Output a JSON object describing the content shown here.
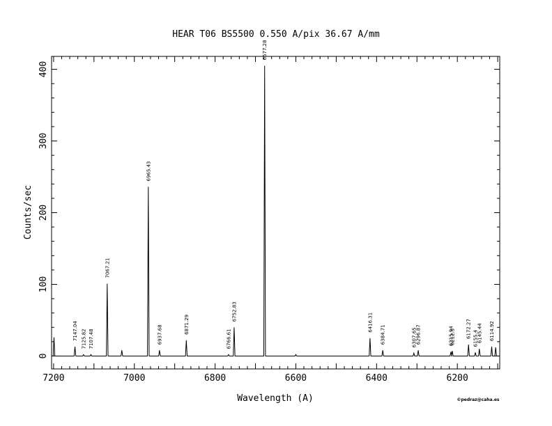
{
  "chart_data": {
    "type": "line",
    "title": "HEAR  T06  BS5500  0.550 A/pix  36.67 A/mm",
    "xlabel": "Wavelength (A)",
    "ylabel": "Counts/sec",
    "credit": "©pedraz@caha.es",
    "xlim": [
      7205,
      6095
    ],
    "ylim": [
      -18,
      418
    ],
    "x_ticks": [
      7200,
      7000,
      6800,
      6600,
      6400,
      6200
    ],
    "y_ticks": [
      0,
      100,
      200,
      300,
      400
    ],
    "grid": false,
    "series": [
      {
        "peaks": [
          {
            "x": 7199,
            "y": 26
          },
          {
            "x": 7147.04,
            "y": 13
          },
          {
            "x": 7125.82,
            "y": 2
          },
          {
            "x": 7107.48,
            "y": 2
          },
          {
            "x": 7067.21,
            "y": 101
          },
          {
            "x": 7031,
            "y": 8
          },
          {
            "x": 6965.43,
            "y": 236
          },
          {
            "x": 6937.68,
            "y": 8
          },
          {
            "x": 6871.29,
            "y": 22
          },
          {
            "x": 6766.61,
            "y": 2
          },
          {
            "x": 6752.83,
            "y": 40
          },
          {
            "x": 6677.28,
            "y": 405
          },
          {
            "x": 6600,
            "y": 2
          },
          {
            "x": 6416.31,
            "y": 25
          },
          {
            "x": 6384.71,
            "y": 8
          },
          {
            "x": 6307.65,
            "y": 4
          },
          {
            "x": 6296.87,
            "y": 8
          },
          {
            "x": 6215.94,
            "y": 6
          },
          {
            "x": 6212.5,
            "y": 7
          },
          {
            "x": 6172.27,
            "y": 16
          },
          {
            "x": 6155.4,
            "y": 5
          },
          {
            "x": 6145.44,
            "y": 10
          },
          {
            "x": 6114.92,
            "y": 13
          },
          {
            "x": 6105,
            "y": 12
          }
        ]
      }
    ],
    "annotations": [
      {
        "x": 7147.04,
        "text": "7147.04"
      },
      {
        "x": 7125.82,
        "text": "7125.82"
      },
      {
        "x": 7107.48,
        "text": "7107.48"
      },
      {
        "x": 7067.21,
        "text": "7067.21"
      },
      {
        "x": 6965.43,
        "text": "6965.43"
      },
      {
        "x": 6937.68,
        "text": "6937.68"
      },
      {
        "x": 6871.29,
        "text": "6871.29"
      },
      {
        "x": 6766.61,
        "text": "6766.61"
      },
      {
        "x": 6752.83,
        "text": "6752.83"
      },
      {
        "x": 6677.28,
        "text": "6677.28"
      },
      {
        "x": 6416.31,
        "text": "6416.31"
      },
      {
        "x": 6384.71,
        "text": "6384.71"
      },
      {
        "x": 6307.65,
        "text": "6307.65"
      },
      {
        "x": 6296.87,
        "text": "6296.87"
      },
      {
        "x": 6215.94,
        "text": "6215.94"
      },
      {
        "x": 6212.5,
        "text": "6212.5"
      },
      {
        "x": 6172.27,
        "text": "6172.27"
      },
      {
        "x": 6155.4,
        "text": "6155.4"
      },
      {
        "x": 6145.44,
        "text": "6145.44"
      },
      {
        "x": 6114.92,
        "text": "6114.92"
      }
    ]
  }
}
